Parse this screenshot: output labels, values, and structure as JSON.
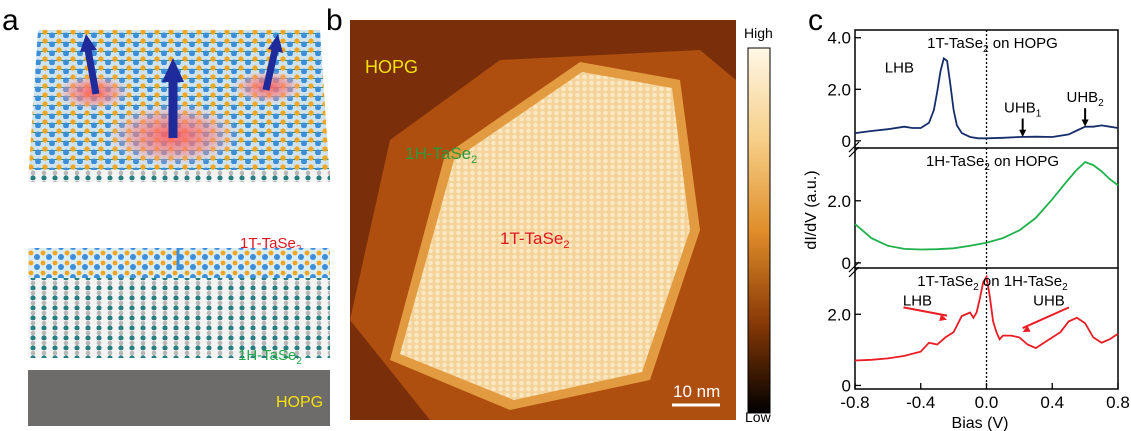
{
  "panel_labels": {
    "a": "a",
    "b": "b",
    "c": "c"
  },
  "panel_a": {
    "label_1T": "1T-TaSe",
    "label_1T_sub": "2",
    "label_1H": "1H-TaSe",
    "label_1H_sub": "2",
    "label_substrate": "HOPG",
    "colors": {
      "label_1T": "#e0161e",
      "label_1H": "#22a84a",
      "substrate_label": "#f5e00a",
      "substrate": "#6e6b6b",
      "se": "#f2a61f",
      "ta": "#3d8ed8",
      "ta_1h": "#1d7a7a",
      "arrow": "#1f2b9a"
    }
  },
  "panel_b": {
    "label_substrate": "HOPG",
    "label_1H": "1H-TaSe",
    "label_1H_sub": "2",
    "label_1T": "1T-TaSe",
    "label_1T_sub": "2",
    "scalebar_label": "10 nm",
    "colorbar_high": "High",
    "colorbar_low": "Low",
    "colors": {
      "substrate_label": "#f5e00a",
      "label_1H": "#2a9a3a",
      "label_1T": "#e0161e"
    }
  },
  "panel_c": {
    "xlabel": "Bias (V)",
    "ylabel": "dI/dV (a.u.)",
    "xticks": [
      "-0.8",
      "-0.4",
      "0.0",
      "0.4",
      "0.8"
    ]
  },
  "chart_data": [
    {
      "type": "line",
      "title_main": "1T-TaSe",
      "title_sub": "2",
      "title_tail": " on HOPG",
      "color": "#162d6b",
      "xlim": [
        -0.8,
        0.8
      ],
      "ylim": [
        -0.2,
        4.3
      ],
      "yticks": [
        "0",
        "2.0",
        "4.0"
      ],
      "ytick_values": [
        0,
        2.0,
        4.0
      ],
      "x": [
        -0.8,
        -0.7,
        -0.6,
        -0.5,
        -0.45,
        -0.4,
        -0.35,
        -0.32,
        -0.3,
        -0.28,
        -0.26,
        -0.24,
        -0.22,
        -0.2,
        -0.18,
        -0.15,
        -0.1,
        -0.05,
        0.0,
        0.1,
        0.2,
        0.3,
        0.4,
        0.5,
        0.55,
        0.6,
        0.65,
        0.7,
        0.75,
        0.8
      ],
      "y": [
        0.3,
        0.38,
        0.45,
        0.55,
        0.5,
        0.5,
        0.7,
        1.2,
        1.9,
        2.7,
        3.2,
        3.1,
        2.2,
        1.2,
        0.6,
        0.3,
        0.15,
        0.1,
        0.1,
        0.12,
        0.15,
        0.16,
        0.15,
        0.25,
        0.4,
        0.55,
        0.55,
        0.6,
        0.55,
        0.5
      ],
      "annotations": [
        {
          "text": "LHB",
          "sub": "",
          "x": -0.53,
          "y": 2.65
        },
        {
          "text": "UHB",
          "sub": "1",
          "x": 0.22,
          "y": 1.1,
          "arrow_to": [
            0.22,
            0.15
          ]
        },
        {
          "text": "UHB",
          "sub": "2",
          "x": 0.6,
          "y": 1.5,
          "arrow_to": [
            0.6,
            0.55
          ]
        }
      ]
    },
    {
      "type": "line",
      "title_main": "1H-TaSe",
      "title_sub": "2",
      "title_tail": " on HOPG",
      "color": "#1fb14b",
      "xlim": [
        -0.8,
        0.8
      ],
      "ylim": [
        -0.1,
        3.7
      ],
      "yticks": [
        "0",
        "2.0"
      ],
      "ytick_values": [
        0,
        2.0
      ],
      "x": [
        -0.8,
        -0.7,
        -0.6,
        -0.5,
        -0.4,
        -0.3,
        -0.2,
        -0.1,
        0.0,
        0.1,
        0.2,
        0.3,
        0.4,
        0.5,
        0.55,
        0.6,
        0.65,
        0.7,
        0.75,
        0.8
      ],
      "y": [
        1.25,
        0.8,
        0.55,
        0.45,
        0.43,
        0.44,
        0.47,
        0.55,
        0.65,
        0.8,
        1.05,
        1.45,
        2.05,
        2.7,
        3.0,
        3.25,
        3.15,
        2.95,
        2.7,
        2.5
      ],
      "annotations": []
    },
    {
      "type": "line",
      "title_main": "1T-TaSe",
      "title_sub": "2",
      "title_tail": " on 1H-TaSe",
      "title_tail_sub": "2",
      "color": "#ea1c24",
      "xlim": [
        -0.8,
        0.8
      ],
      "ylim": [
        -0.1,
        3.3
      ],
      "yticks": [
        "0",
        "2.0"
      ],
      "ytick_values": [
        0,
        2.0
      ],
      "x": [
        -0.8,
        -0.7,
        -0.6,
        -0.5,
        -0.4,
        -0.35,
        -0.3,
        -0.25,
        -0.2,
        -0.15,
        -0.1,
        -0.08,
        -0.06,
        -0.04,
        -0.02,
        0.0,
        0.02,
        0.04,
        0.06,
        0.08,
        0.1,
        0.15,
        0.2,
        0.25,
        0.3,
        0.35,
        0.4,
        0.45,
        0.5,
        0.55,
        0.6,
        0.65,
        0.7,
        0.75,
        0.8
      ],
      "y": [
        0.7,
        0.72,
        0.76,
        0.83,
        0.95,
        1.2,
        1.15,
        1.35,
        1.5,
        1.95,
        2.05,
        1.9,
        2.05,
        2.45,
        2.9,
        3.05,
        2.5,
        1.8,
        1.5,
        1.3,
        1.4,
        1.4,
        1.35,
        1.15,
        1.05,
        1.2,
        1.35,
        1.5,
        1.8,
        1.9,
        1.75,
        1.35,
        1.2,
        1.3,
        1.45
      ],
      "annotations": [
        {
          "text": "LHB",
          "sub": "",
          "x": -0.42,
          "y": 2.25,
          "arrow_to": [
            -0.24,
            1.85
          ]
        },
        {
          "text": "UHB",
          "sub": "",
          "x": 0.38,
          "y": 2.25,
          "arrow_to": [
            0.22,
            1.5
          ]
        }
      ]
    }
  ]
}
